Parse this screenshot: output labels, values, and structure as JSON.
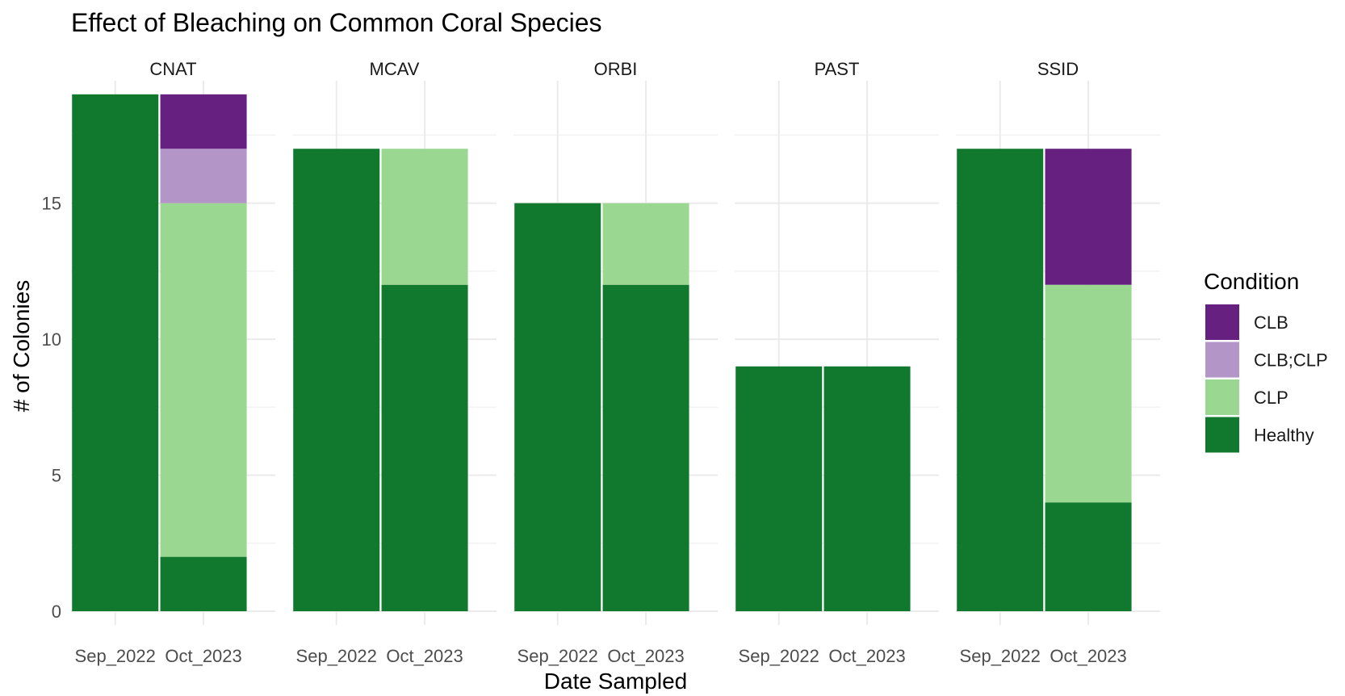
{
  "chart_data": {
    "type": "bar",
    "stacked": true,
    "faceted": true,
    "title": "Effect of Bleaching on Common Coral Species",
    "xlabel": "Date Sampled",
    "ylabel": "# of Colonies",
    "ylim": [
      0,
      19.5
    ],
    "yticks": [
      0,
      5,
      10,
      15
    ],
    "grid": true,
    "legend_position": "right",
    "legend_title": "Condition",
    "categories": [
      "Sep_2022",
      "Oct_2023"
    ],
    "legend": [
      {
        "name": "CLB",
        "color": "#662080"
      },
      {
        "name": "CLB;CLP",
        "color": "#b495c7"
      },
      {
        "name": "CLP",
        "color": "#9ad790"
      },
      {
        "name": "Healthy",
        "color": "#11792e"
      }
    ],
    "facets": [
      {
        "name": "CNAT",
        "series": [
          {
            "name": "Healthy",
            "values": [
              19,
              2
            ]
          },
          {
            "name": "CLP",
            "values": [
              0,
              13
            ]
          },
          {
            "name": "CLB;CLP",
            "values": [
              0,
              2
            ]
          },
          {
            "name": "CLB",
            "values": [
              0,
              2
            ]
          }
        ]
      },
      {
        "name": "MCAV",
        "series": [
          {
            "name": "Healthy",
            "values": [
              17,
              12
            ]
          },
          {
            "name": "CLP",
            "values": [
              0,
              5
            ]
          },
          {
            "name": "CLB;CLP",
            "values": [
              0,
              0
            ]
          },
          {
            "name": "CLB",
            "values": [
              0,
              0
            ]
          }
        ]
      },
      {
        "name": "ORBI",
        "series": [
          {
            "name": "Healthy",
            "values": [
              15,
              12
            ]
          },
          {
            "name": "CLP",
            "values": [
              0,
              3
            ]
          },
          {
            "name": "CLB;CLP",
            "values": [
              0,
              0
            ]
          },
          {
            "name": "CLB",
            "values": [
              0,
              0
            ]
          }
        ]
      },
      {
        "name": "PAST",
        "series": [
          {
            "name": "Healthy",
            "values": [
              9,
              9
            ]
          },
          {
            "name": "CLP",
            "values": [
              0,
              0
            ]
          },
          {
            "name": "CLB;CLP",
            "values": [
              0,
              0
            ]
          },
          {
            "name": "CLB",
            "values": [
              0,
              0
            ]
          }
        ]
      },
      {
        "name": "SSID",
        "series": [
          {
            "name": "Healthy",
            "values": [
              17,
              4
            ]
          },
          {
            "name": "CLP",
            "values": [
              0,
              8
            ]
          },
          {
            "name": "CLB;CLP",
            "values": [
              0,
              0
            ]
          },
          {
            "name": "CLB",
            "values": [
              0,
              5
            ]
          }
        ]
      }
    ]
  }
}
